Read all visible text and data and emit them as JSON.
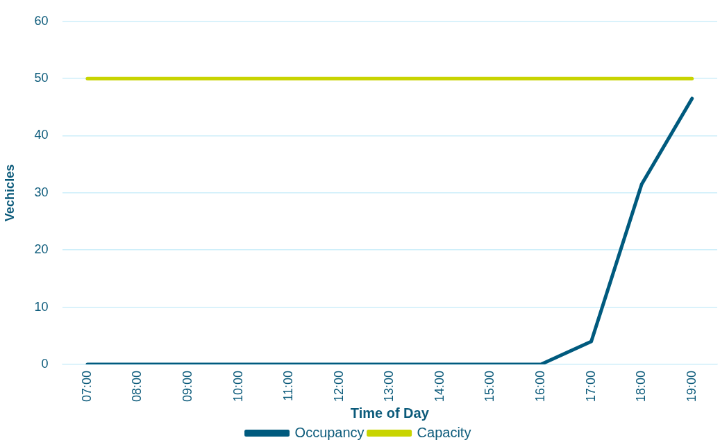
{
  "chart_data": {
    "type": "line",
    "xlabel": "Time of Day",
    "ylabel": "Vechicles",
    "categories": [
      "07:00",
      "08:00",
      "09:00",
      "10:00",
      "11:00",
      "12:00",
      "13:00",
      "14:00",
      "15:00",
      "16:00",
      "17:00",
      "18:00",
      "19:00"
    ],
    "series": [
      {
        "name": "Occupancy",
        "color": "#005a7e",
        "values": [
          0,
          0,
          0,
          0,
          0,
          0,
          0,
          0,
          0,
          0,
          4,
          31.5,
          46.5
        ]
      },
      {
        "name": "Capacity",
        "color": "#c8d400",
        "values": [
          50,
          50,
          50,
          50,
          50,
          50,
          50,
          50,
          50,
          50,
          50,
          50,
          50
        ]
      }
    ],
    "ylim": [
      0,
      60
    ],
    "yticks": [
      0,
      10,
      20,
      30,
      40,
      50,
      60
    ],
    "grid": "y",
    "legend": "bottom",
    "marker": "none",
    "line_style": "solid"
  }
}
